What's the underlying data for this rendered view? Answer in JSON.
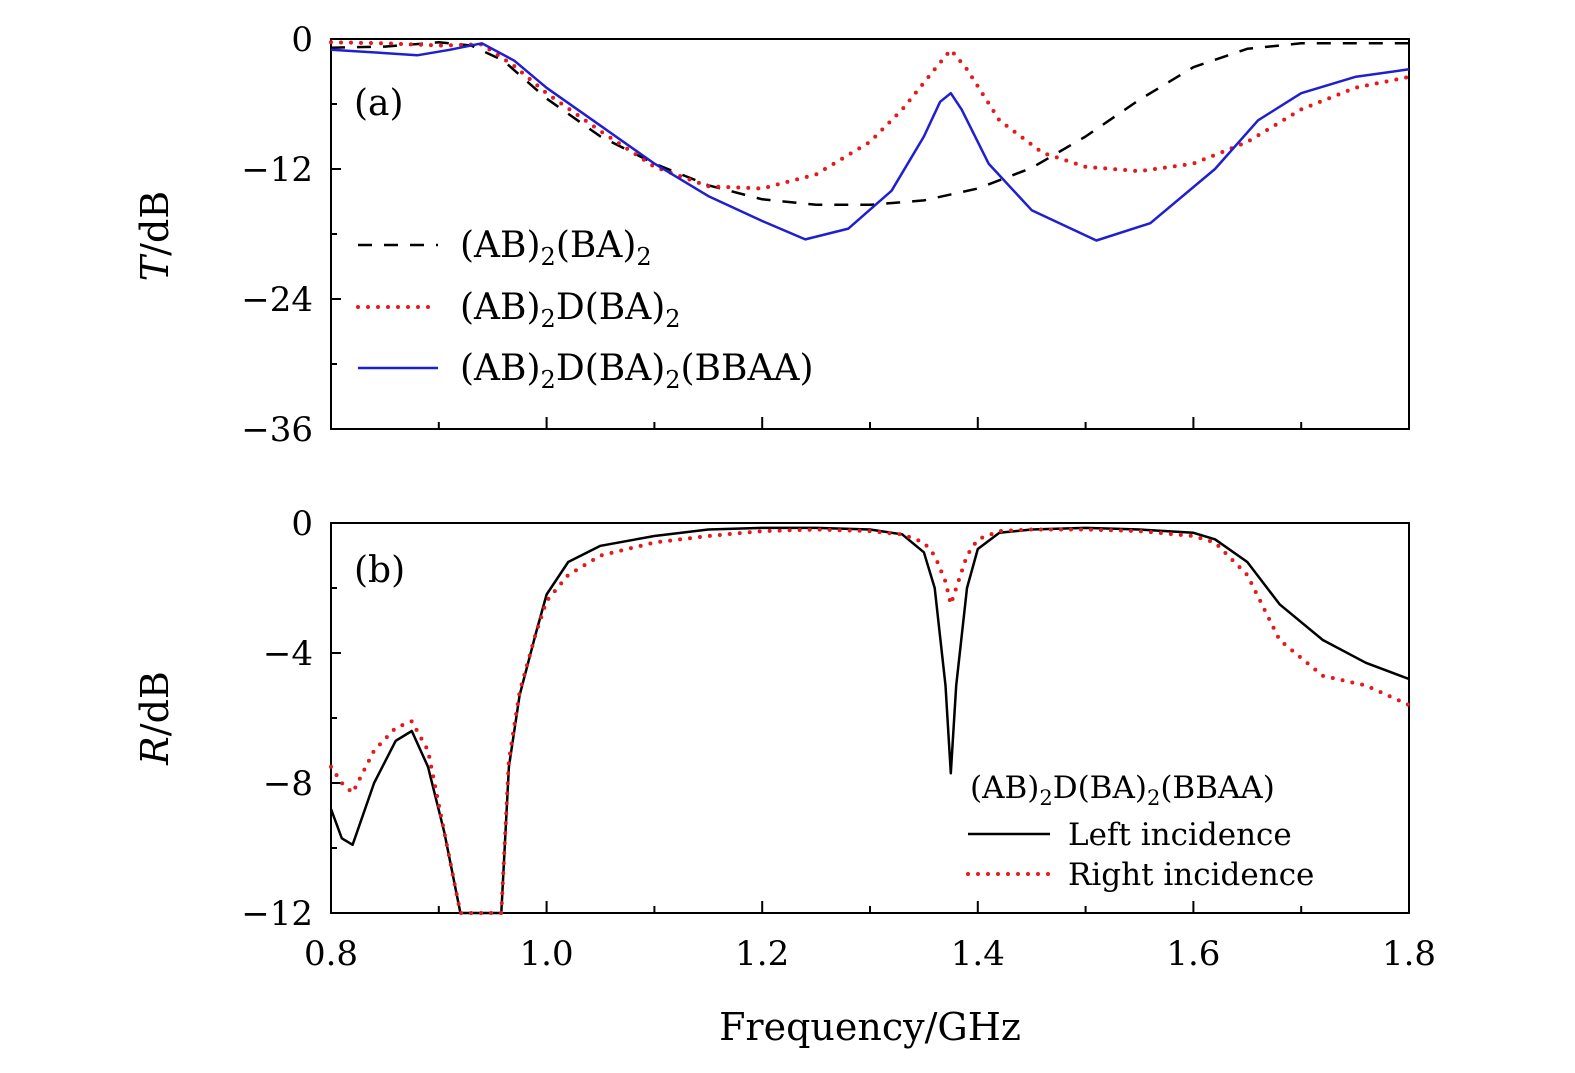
{
  "chart_data": [
    {
      "panel": "(a)",
      "type": "line",
      "ylabel_italic": "T",
      "ylabel_unit": "/dB",
      "xlabel": "Frequency/GHz",
      "xlim": [
        0.8,
        1.8
      ],
      "ylim": [
        -36,
        0
      ],
      "yticks": [
        0,
        -12,
        -24,
        -36
      ],
      "ytick_labels": [
        "0",
        "−12",
        "−24",
        "−36"
      ],
      "series": [
        {
          "name": "(AB)2(BA)2",
          "label_parts": [
            "(AB)",
            "2",
            "(BA)",
            "2"
          ],
          "style": "dashed",
          "color": "#000000",
          "x": [
            0.8,
            0.85,
            0.9,
            0.93,
            0.96,
            1.0,
            1.05,
            1.1,
            1.15,
            1.2,
            1.25,
            1.3,
            1.35,
            1.4,
            1.45,
            1.5,
            1.55,
            1.6,
            1.65,
            1.7,
            1.75,
            1.8
          ],
          "y": [
            -0.8,
            -0.7,
            -0.3,
            -0.6,
            -2.0,
            -5.5,
            -9.0,
            -11.5,
            -13.5,
            -14.8,
            -15.3,
            -15.3,
            -14.9,
            -13.8,
            -11.9,
            -9.0,
            -5.6,
            -2.6,
            -0.9,
            -0.4,
            -0.4,
            -0.4
          ]
        },
        {
          "name": "(AB)2D(BA)2",
          "label_parts": [
            "(AB)",
            "2",
            "D(BA)",
            "2"
          ],
          "style": "dotted",
          "color": "#e41a1c",
          "x": [
            0.8,
            0.85,
            0.9,
            0.94,
            0.97,
            1.0,
            1.05,
            1.1,
            1.15,
            1.2,
            1.25,
            1.3,
            1.33,
            1.36,
            1.375,
            1.39,
            1.42,
            1.46,
            1.5,
            1.55,
            1.6,
            1.65,
            1.7,
            1.75,
            1.8
          ],
          "y": [
            -0.3,
            -0.4,
            -0.6,
            -0.5,
            -2.5,
            -5.0,
            -8.5,
            -11.8,
            -13.6,
            -13.8,
            -12.5,
            -9.5,
            -6.5,
            -2.8,
            -1.0,
            -2.8,
            -7.5,
            -10.5,
            -11.8,
            -12.2,
            -11.5,
            -9.5,
            -6.5,
            -4.5,
            -3.5
          ]
        },
        {
          "name": "(AB)2D(BA)2(BBAA)",
          "label_parts": [
            "(AB)",
            "2",
            "D(BA)",
            "2",
            "(BBAA)"
          ],
          "style": "solid",
          "color": "#1f1fd1",
          "x": [
            0.8,
            0.85,
            0.88,
            0.91,
            0.94,
            0.97,
            1.0,
            1.05,
            1.1,
            1.15,
            1.2,
            1.24,
            1.28,
            1.32,
            1.35,
            1.365,
            1.375,
            1.385,
            1.41,
            1.45,
            1.51,
            1.56,
            1.62,
            1.66,
            1.7,
            1.75,
            1.8
          ],
          "y": [
            -1.0,
            -1.3,
            -1.5,
            -1.0,
            -0.4,
            -2.0,
            -4.5,
            -8.0,
            -11.5,
            -14.5,
            -16.8,
            -18.5,
            -17.5,
            -14.0,
            -9.0,
            -5.8,
            -5.0,
            -6.5,
            -11.5,
            -15.8,
            -18.6,
            -17.0,
            -12.0,
            -7.5,
            -5.0,
            -3.5,
            -2.8
          ]
        }
      ]
    },
    {
      "panel": "(b)",
      "type": "line",
      "ylabel_italic": "R",
      "ylabel_unit": "/dB",
      "xlabel": "Frequency/GHz",
      "xlim": [
        0.8,
        1.8
      ],
      "ylim": [
        -12,
        0
      ],
      "xticks": [
        0.8,
        1.0,
        1.2,
        1.4,
        1.6,
        1.8
      ],
      "xtick_labels": [
        "0.8",
        "1.0",
        "1.2",
        "1.4",
        "1.6",
        "1.8"
      ],
      "yticks": [
        0,
        -4,
        -8,
        -12
      ],
      "ytick_labels": [
        "0",
        "−4",
        "−8",
        "−12"
      ],
      "legend_title_parts": [
        "(AB)",
        "2",
        "D(BA)",
        "2",
        "(BBAA)"
      ],
      "series": [
        {
          "name": "Left incidence",
          "style": "solid",
          "color": "#000000",
          "x": [
            0.8,
            0.81,
            0.82,
            0.84,
            0.86,
            0.875,
            0.89,
            0.905,
            0.92,
            0.958,
            0.965,
            0.975,
            0.99,
            1.0,
            1.02,
            1.05,
            1.1,
            1.15,
            1.2,
            1.25,
            1.3,
            1.33,
            1.35,
            1.36,
            1.37,
            1.375,
            1.38,
            1.39,
            1.4,
            1.42,
            1.45,
            1.5,
            1.55,
            1.6,
            1.62,
            1.65,
            1.68,
            1.72,
            1.76,
            1.8
          ],
          "y": [
            -8.8,
            -9.7,
            -9.9,
            -8.0,
            -6.7,
            -6.4,
            -7.5,
            -9.5,
            -12.0,
            -12.0,
            -7.5,
            -5.3,
            -3.4,
            -2.2,
            -1.2,
            -0.7,
            -0.4,
            -0.2,
            -0.15,
            -0.15,
            -0.2,
            -0.35,
            -0.9,
            -2.0,
            -5.0,
            -7.7,
            -5.0,
            -2.0,
            -0.8,
            -0.3,
            -0.2,
            -0.15,
            -0.2,
            -0.3,
            -0.5,
            -1.2,
            -2.5,
            -3.6,
            -4.3,
            -4.8
          ]
        },
        {
          "name": "Right incidence",
          "style": "dotted",
          "color": "#e41a1c",
          "x": [
            0.8,
            0.81,
            0.82,
            0.84,
            0.86,
            0.875,
            0.89,
            0.905,
            0.92,
            0.958,
            0.965,
            0.975,
            0.99,
            1.0,
            1.02,
            1.05,
            1.1,
            1.15,
            1.2,
            1.25,
            1.3,
            1.33,
            1.35,
            1.36,
            1.37,
            1.375,
            1.38,
            1.39,
            1.4,
            1.42,
            1.45,
            1.5,
            1.55,
            1.6,
            1.62,
            1.65,
            1.68,
            1.72,
            1.76,
            1.8
          ],
          "y": [
            -7.5,
            -8.0,
            -8.3,
            -7.0,
            -6.3,
            -6.1,
            -7.0,
            -9.5,
            -12.0,
            -12.0,
            -7.3,
            -5.2,
            -3.4,
            -2.4,
            -1.6,
            -1.0,
            -0.6,
            -0.4,
            -0.25,
            -0.2,
            -0.25,
            -0.35,
            -0.6,
            -1.0,
            -1.8,
            -2.5,
            -2.0,
            -1.0,
            -0.5,
            -0.25,
            -0.2,
            -0.2,
            -0.25,
            -0.4,
            -0.6,
            -1.6,
            -3.6,
            -4.7,
            -5.0,
            -5.6
          ]
        }
      ]
    }
  ]
}
